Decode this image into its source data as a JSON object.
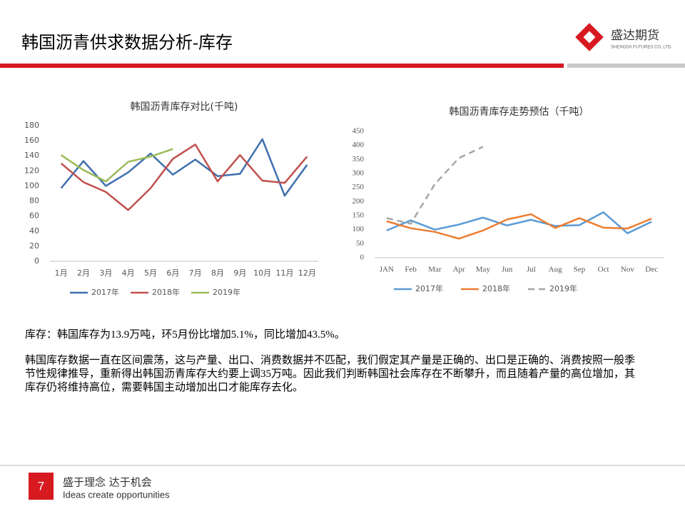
{
  "header": {
    "title": "韩国沥青供求数据分析-库存",
    "logo_name": "盛达期货",
    "logo_sub": "SHENGDA FUTURES CO.,LTD."
  },
  "chart_data": [
    {
      "type": "line",
      "title": "韩国沥青库存对比(千吨)",
      "categories": [
        "1月",
        "2月",
        "3月",
        "4月",
        "5月",
        "6月",
        "7月",
        "8月",
        "9月",
        "10月",
        "11月",
        "12月"
      ],
      "series": [
        {
          "name": "2017年",
          "color": "#3f6fae",
          "line_style": "solid",
          "values": [
            97,
            133,
            100,
            118,
            143,
            115,
            135,
            113,
            116,
            162,
            87,
            128
          ]
        },
        {
          "name": "2018年",
          "color": "#c0504d",
          "line_style": "solid",
          "values": [
            130,
            105,
            92,
            68,
            97,
            136,
            155,
            106,
            141,
            107,
            104,
            139
          ]
        },
        {
          "name": "2019年",
          "color": "#9bbb59",
          "line_style": "solid",
          "values": [
            141,
            121,
            106,
            132,
            139,
            149,
            null,
            null,
            null,
            null,
            null,
            null
          ]
        }
      ],
      "ylim": [
        0,
        180
      ],
      "yticks": [
        0,
        20,
        40,
        60,
        80,
        100,
        120,
        140,
        160,
        180
      ],
      "grid": false,
      "legend": "bottom"
    },
    {
      "type": "line",
      "title": "韩国沥青库存走势预估（千吨）",
      "categories": [
        "JAN",
        "Feb",
        "Mar",
        "Apr",
        "May",
        "Jun",
        "Jul",
        "Aug",
        "Sep",
        "Oct",
        "Nov",
        "Dec"
      ],
      "series": [
        {
          "name": "2017年",
          "color": "#5b9bd5",
          "line_style": "solid",
          "values": [
            97,
            133,
            100,
            118,
            143,
            115,
            135,
            113,
            116,
            162,
            87,
            128
          ]
        },
        {
          "name": "2018年",
          "color": "#ed7d31",
          "line_style": "solid",
          "values": [
            130,
            105,
            92,
            68,
            97,
            136,
            155,
            106,
            141,
            107,
            104,
            139
          ]
        },
        {
          "name": "2019年",
          "color": "#a5a5a5",
          "line_style": "dashed",
          "values": [
            141,
            121,
            262,
            355,
            395,
            null,
            null,
            null,
            null,
            null,
            null,
            null
          ]
        }
      ],
      "ylim": [
        0,
        450
      ],
      "yticks": [
        0,
        50,
        100,
        150,
        200,
        250,
        300,
        350,
        400,
        450
      ],
      "grid": false,
      "legend": "bottom"
    }
  ],
  "text": {
    "summary": "库存：韩国库存为13.9万吨，环5月份比增加5.1%，同比增加43.5%。",
    "body": "韩国库存数据一直在区间震荡，这与产量、出口、消费数据并不匹配，我们假定其产量是正确的、出口是正确的、消费按照一般季节性规律推导，重新得出韩国沥青库存大约要上调35万吨。因此我们判断韩国社会库存在不断攀升，而且随着产量的高位增加，其库存仍将维持高位，需要韩国主动增加出口才能库存去化。"
  },
  "footer": {
    "page": "7",
    "slogan": "盛于理念 达于机会",
    "slogan_en": "Ideas create opportunities"
  }
}
